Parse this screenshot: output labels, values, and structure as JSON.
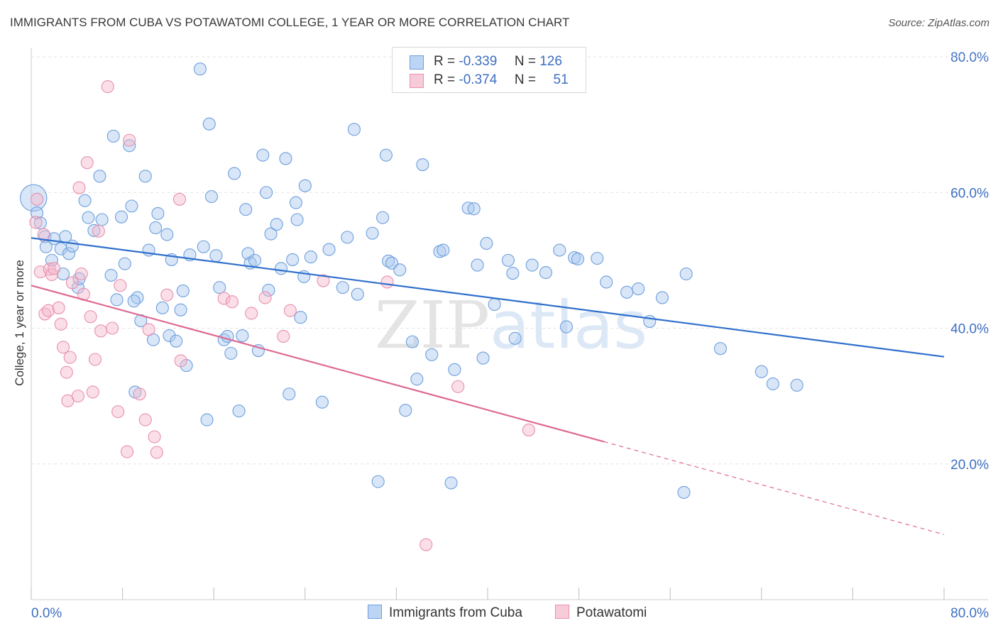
{
  "title": "IMMIGRANTS FROM CUBA VS POTAWATOMI COLLEGE, 1 YEAR OR MORE CORRELATION CHART",
  "source": "Source: ZipAtlas.com",
  "watermark": "ZIPatlas",
  "legend_top": {
    "rows": [
      {
        "r_label": "R =",
        "r_value": "-0.339",
        "n_label": "N =",
        "n_value": "126",
        "color": "#a9c8f0"
      },
      {
        "r_label": "R =",
        "r_value": "-0.374",
        "n_label": "N =",
        "n_value": "51",
        "color": "#f5b8cb"
      }
    ]
  },
  "legend_bottom": [
    {
      "label": "Immigrants from Cuba",
      "color": "#a9c8f0"
    },
    {
      "label": "Potawatomi",
      "color": "#f5b8cb"
    }
  ],
  "chart_data": {
    "type": "scatter",
    "title": "IMMIGRANTS FROM CUBA VS POTAWATOMI COLLEGE, 1 YEAR OR MORE CORRELATION CHART",
    "xlabel": "",
    "ylabel": "College, 1 year or more",
    "xlim": [
      0,
      80
    ],
    "ylim": [
      0,
      80
    ],
    "x_tick_labels": [
      "0.0%",
      "80.0%"
    ],
    "y_tick_labels": [
      "20.0%",
      "40.0%",
      "60.0%",
      "80.0%"
    ],
    "y_ticks": [
      20,
      40,
      60,
      80
    ],
    "grid": true,
    "legend_position": "top-center",
    "series": [
      {
        "name": "Immigrants from Cuba",
        "color": "#a9c8f0",
        "edge_color": "#6e9fdc",
        "trend_color": "#2f6fcc",
        "trend": {
          "x": [
            0,
            80
          ],
          "y": [
            53.3,
            35.8
          ],
          "dashed_from": null
        },
        "points": [
          [
            0.2,
            59.2,
            2.2
          ],
          [
            0.5,
            57.0,
            1
          ],
          [
            0.8,
            55.5,
            1
          ],
          [
            1.2,
            53.5,
            1
          ],
          [
            1.3,
            52.0,
            1
          ],
          [
            1.8,
            50.0,
            1
          ],
          [
            2.0,
            53.2,
            1
          ],
          [
            2.6,
            51.7,
            1
          ],
          [
            2.8,
            48.0,
            1
          ],
          [
            3.0,
            53.5,
            1
          ],
          [
            3.3,
            51.0,
            1
          ],
          [
            3.6,
            52.1,
            1
          ],
          [
            4.1,
            46.0,
            1
          ],
          [
            4.2,
            47.3,
            1
          ],
          [
            4.7,
            58.8,
            1
          ],
          [
            5.0,
            56.3,
            1
          ],
          [
            5.5,
            54.4,
            1
          ],
          [
            6.2,
            56.0,
            1
          ],
          [
            6.0,
            62.4,
            1
          ],
          [
            7.0,
            47.8,
            1
          ],
          [
            7.2,
            68.3,
            1
          ],
          [
            7.5,
            44.2,
            1
          ],
          [
            7.9,
            56.4,
            1
          ],
          [
            8.2,
            49.5,
            1
          ],
          [
            8.6,
            66.9,
            1
          ],
          [
            8.8,
            58.0,
            1
          ],
          [
            9.1,
            30.6,
            1
          ],
          [
            9.3,
            44.5,
            1
          ],
          [
            9.6,
            41.1,
            1
          ],
          [
            10.0,
            62.4,
            1
          ],
          [
            10.3,
            51.5,
            1
          ],
          [
            10.7,
            38.3,
            1
          ],
          [
            10.9,
            54.8,
            1
          ],
          [
            11.1,
            56.9,
            1
          ],
          [
            11.5,
            43.0,
            1
          ],
          [
            11.9,
            53.8,
            1
          ],
          [
            12.1,
            38.9,
            1
          ],
          [
            12.3,
            50.1,
            1
          ],
          [
            12.7,
            38.1,
            1
          ],
          [
            13.1,
            42.7,
            1
          ],
          [
            13.3,
            45.5,
            1
          ],
          [
            13.6,
            34.5,
            1
          ],
          [
            13.9,
            50.8,
            1
          ],
          [
            14.8,
            78.2,
            1
          ],
          [
            15.1,
            52.0,
            1
          ],
          [
            15.4,
            26.5,
            1
          ],
          [
            15.6,
            70.1,
            1
          ],
          [
            15.8,
            59.4,
            1
          ],
          [
            16.2,
            50.7,
            1
          ],
          [
            16.5,
            46.0,
            1
          ],
          [
            16.9,
            38.3,
            1
          ],
          [
            17.2,
            38.8,
            1
          ],
          [
            17.5,
            36.3,
            1
          ],
          [
            17.8,
            62.8,
            1
          ],
          [
            18.2,
            27.8,
            1
          ],
          [
            18.5,
            38.9,
            1
          ],
          [
            18.8,
            57.5,
            1
          ],
          [
            19.0,
            51.0,
            1
          ],
          [
            19.2,
            49.6,
            1
          ],
          [
            19.6,
            50.0,
            1
          ],
          [
            19.9,
            36.7,
            1
          ],
          [
            20.3,
            65.5,
            1
          ],
          [
            20.6,
            60.0,
            1
          ],
          [
            20.8,
            45.6,
            1
          ],
          [
            21.0,
            53.9,
            1
          ],
          [
            21.5,
            55.3,
            1
          ],
          [
            21.9,
            48.8,
            1
          ],
          [
            22.3,
            65.0,
            1
          ],
          [
            22.6,
            30.3,
            1
          ],
          [
            22.9,
            50.1,
            1
          ],
          [
            23.2,
            58.5,
            1
          ],
          [
            23.3,
            56.0,
            1
          ],
          [
            23.6,
            41.6,
            1
          ],
          [
            23.9,
            47.6,
            1
          ],
          [
            24.5,
            50.5,
            1
          ],
          [
            25.5,
            29.1,
            1
          ],
          [
            26.1,
            51.6,
            1
          ],
          [
            27.3,
            46.0,
            1
          ],
          [
            27.7,
            53.4,
            1
          ],
          [
            28.3,
            69.3,
            1
          ],
          [
            28.6,
            45.0,
            1
          ],
          [
            29.9,
            54.0,
            1
          ],
          [
            30.4,
            17.4,
            1
          ],
          [
            30.8,
            56.3,
            1
          ],
          [
            31.1,
            65.5,
            1
          ],
          [
            31.3,
            49.9,
            1
          ],
          [
            31.6,
            49.6,
            1
          ],
          [
            32.3,
            48.6,
            1
          ],
          [
            32.8,
            27.9,
            1
          ],
          [
            33.4,
            38.0,
            1
          ],
          [
            34.3,
            64.1,
            1
          ],
          [
            35.1,
            36.1,
            1
          ],
          [
            35.8,
            51.3,
            1
          ],
          [
            36.1,
            51.5,
            1
          ],
          [
            36.8,
            17.2,
            1
          ],
          [
            37.1,
            33.9,
            1
          ],
          [
            38.3,
            57.7,
            1
          ],
          [
            38.8,
            57.6,
            1
          ],
          [
            39.1,
            49.3,
            1
          ],
          [
            39.6,
            35.6,
            1
          ],
          [
            39.9,
            52.5,
            1
          ],
          [
            40.6,
            43.5,
            1
          ],
          [
            41.8,
            50.0,
            1
          ],
          [
            42.2,
            48.1,
            1
          ],
          [
            42.4,
            38.5,
            1
          ],
          [
            43.9,
            49.3,
            1
          ],
          [
            45.1,
            48.2,
            1
          ],
          [
            46.3,
            51.5,
            1
          ],
          [
            46.9,
            40.2,
            1
          ],
          [
            47.6,
            50.4,
            1
          ],
          [
            47.9,
            50.2,
            1
          ],
          [
            49.6,
            50.3,
            1
          ],
          [
            50.4,
            46.8,
            1
          ],
          [
            52.2,
            45.3,
            1
          ],
          [
            53.2,
            45.8,
            1
          ],
          [
            54.2,
            41.0,
            1
          ],
          [
            55.3,
            44.5,
            1
          ],
          [
            57.2,
            15.8,
            1
          ],
          [
            57.4,
            48.0,
            1
          ],
          [
            60.4,
            37.0,
            1
          ],
          [
            64.0,
            33.6,
            1
          ],
          [
            65.0,
            31.8,
            1
          ],
          [
            67.1,
            31.6,
            1
          ],
          [
            33.8,
            32.5,
            1
          ],
          [
            9.0,
            44.0,
            1
          ],
          [
            24.0,
            61.0,
            1
          ]
        ]
      },
      {
        "name": "Potawatomi",
        "color": "#f5b8cb",
        "edge_color": "#e890ad",
        "trend_color": "#de6a93",
        "trend": {
          "x": [
            0,
            80
          ],
          "y": [
            46.3,
            9.6
          ],
          "dashed_from": 50.2
        },
        "points": [
          [
            0.4,
            55.6,
            1
          ],
          [
            0.5,
            59.0,
            1
          ],
          [
            0.8,
            48.3,
            1
          ],
          [
            1.1,
            53.8,
            1
          ],
          [
            1.2,
            42.1,
            1
          ],
          [
            1.5,
            42.6,
            1
          ],
          [
            1.6,
            48.7,
            1
          ],
          [
            1.8,
            47.9,
            1
          ],
          [
            2.0,
            48.8,
            1
          ],
          [
            2.4,
            43.0,
            1
          ],
          [
            2.6,
            40.6,
            1
          ],
          [
            2.8,
            37.2,
            1
          ],
          [
            3.1,
            33.5,
            1
          ],
          [
            3.2,
            29.3,
            1
          ],
          [
            3.4,
            35.7,
            1
          ],
          [
            3.6,
            46.7,
            1
          ],
          [
            4.1,
            30.0,
            1
          ],
          [
            4.2,
            60.7,
            1
          ],
          [
            4.4,
            48.0,
            1
          ],
          [
            4.6,
            45.0,
            1
          ],
          [
            4.9,
            64.4,
            1
          ],
          [
            5.2,
            41.7,
            1
          ],
          [
            5.4,
            30.6,
            1
          ],
          [
            5.6,
            35.4,
            1
          ],
          [
            5.9,
            54.3,
            1
          ],
          [
            6.1,
            39.6,
            1
          ],
          [
            6.7,
            75.6,
            1
          ],
          [
            7.1,
            40.0,
            1
          ],
          [
            7.6,
            27.7,
            1
          ],
          [
            7.8,
            46.3,
            1
          ],
          [
            8.4,
            21.8,
            1
          ],
          [
            8.6,
            67.7,
            1
          ],
          [
            9.5,
            30.3,
            1
          ],
          [
            10.0,
            26.5,
            1
          ],
          [
            10.3,
            39.8,
            1
          ],
          [
            10.8,
            24.0,
            1
          ],
          [
            11.0,
            21.7,
            1
          ],
          [
            11.9,
            44.9,
            1
          ],
          [
            13.1,
            35.2,
            1
          ],
          [
            16.9,
            44.4,
            1
          ],
          [
            17.6,
            43.9,
            1
          ],
          [
            19.3,
            42.2,
            1
          ],
          [
            20.5,
            44.5,
            1
          ],
          [
            22.1,
            38.8,
            1
          ],
          [
            22.7,
            42.6,
            1
          ],
          [
            25.6,
            47.0,
            1
          ],
          [
            31.2,
            46.8,
            1
          ],
          [
            34.6,
            8.1,
            1
          ],
          [
            37.4,
            31.4,
            1
          ],
          [
            43.6,
            25.0,
            1
          ],
          [
            13.0,
            59.0,
            1
          ]
        ]
      }
    ]
  }
}
